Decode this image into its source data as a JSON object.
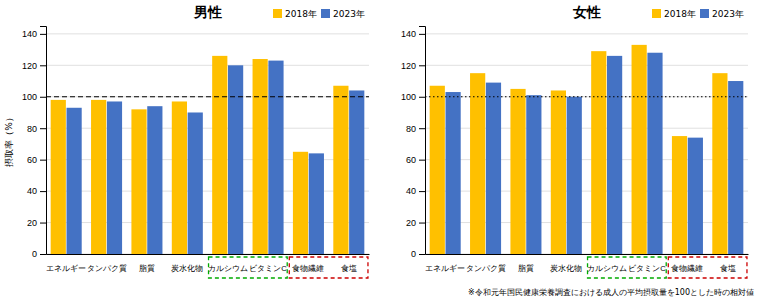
{
  "chart_data": [
    {
      "type": "bar",
      "title": "男性",
      "categories": [
        "エネルギー",
        "タンパク質",
        "脂質",
        "炭水化物",
        "カルシウム",
        "ビタミンC",
        "食物繊維",
        "食塩"
      ],
      "series": [
        {
          "name": "2018年",
          "color": "#FFC000",
          "values": [
            98,
            98,
            92,
            97,
            126,
            124,
            65,
            107
          ]
        },
        {
          "name": "2023年",
          "color": "#4472C4",
          "values": [
            93,
            97,
            94,
            90,
            120,
            123,
            64,
            104
          ]
        }
      ],
      "y_label": "摂取率（%）",
      "ylim": [
        0,
        145
      ],
      "yticks": [
        0,
        20,
        40,
        60,
        80,
        100,
        120,
        140
      ],
      "grid": true,
      "legend": "upper right",
      "reference_line": {
        "value": 100,
        "line_style": "dashed"
      },
      "highlight_boxes": [
        {
          "categories": [
            "カルシウム",
            "ビタミンC"
          ],
          "color": "#00AA00"
        },
        {
          "categories": [
            "食物繊維",
            "食塩"
          ],
          "color": "#CC0000"
        }
      ]
    },
    {
      "type": "bar",
      "title": "女性",
      "categories": [
        "エネルギー",
        "タンパク質",
        "脂質",
        "炭水化物",
        "カルシウム",
        "ビタミンC",
        "食物繊維",
        "食塩"
      ],
      "series": [
        {
          "name": "2018年",
          "color": "#FFC000",
          "values": [
            107,
            115,
            105,
            104,
            129,
            133,
            75,
            115
          ]
        },
        {
          "name": "2023年",
          "color": "#4472C4",
          "values": [
            103,
            109,
            101,
            100,
            126,
            128,
            74,
            110
          ]
        }
      ],
      "ylim": [
        0,
        145
      ],
      "yticks": [
        0,
        20,
        40,
        60,
        80,
        100,
        120,
        140
      ],
      "grid": true,
      "legend": "upper right",
      "reference_line": {
        "value": 100,
        "line_style": "dotted"
      },
      "highlight_boxes": [
        {
          "categories": [
            "カルシウム",
            "ビタミンC"
          ],
          "color": "#00AA00"
        },
        {
          "categories": [
            "食物繊維",
            "食塩"
          ],
          "color": "#CC0000"
        }
      ]
    }
  ],
  "footnote": "※令和元年国民健康栄養調査における成人の平均摂取量を100とした時の相対値"
}
